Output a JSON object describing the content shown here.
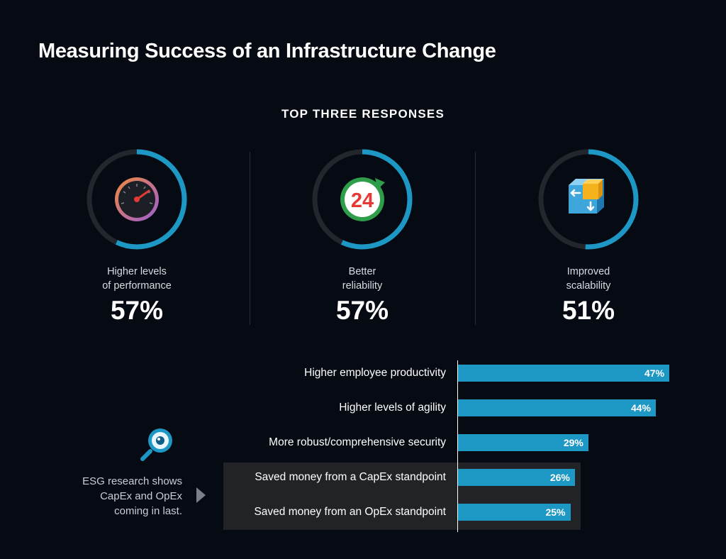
{
  "page": {
    "title": "Measuring Success of an Infrastructure Change",
    "subtitle": "TOP THREE RESPONSES"
  },
  "top_three": [
    {
      "label_line1": "Higher levels",
      "label_line2": "of performance",
      "value_text": "57%",
      "value": 57,
      "icon": "speedometer-icon"
    },
    {
      "label_line1": "Better",
      "label_line2": "reliability",
      "value_text": "57%",
      "value": 57,
      "icon": "24-hour-icon"
    },
    {
      "label_line1": "Improved",
      "label_line2": "scalability",
      "value_text": "51%",
      "value": 51,
      "icon": "scalability-cube-icon"
    }
  ],
  "note": {
    "text": "ESG research shows CapEx and OpEx coming in last.",
    "icon": "magnifier-icon"
  },
  "colors": {
    "accent": "#1d97c4",
    "ring_track": "#23262c",
    "background": "#050a13",
    "highlight_box": "#212327"
  },
  "chart_data": {
    "type": "bar",
    "orientation": "horizontal",
    "categories": [
      "Higher employee productivity",
      "Higher levels of agility",
      "More robust/comprehensive security",
      "Saved money from a CapEx standpoint",
      "Saved money from an OpEx standpoint"
    ],
    "values": [
      47,
      44,
      29,
      26,
      25
    ],
    "value_labels": [
      "47%",
      "44%",
      "29%",
      "26%",
      "25%"
    ],
    "xlim": [
      0,
      47
    ],
    "grid": false,
    "legend": "none"
  }
}
